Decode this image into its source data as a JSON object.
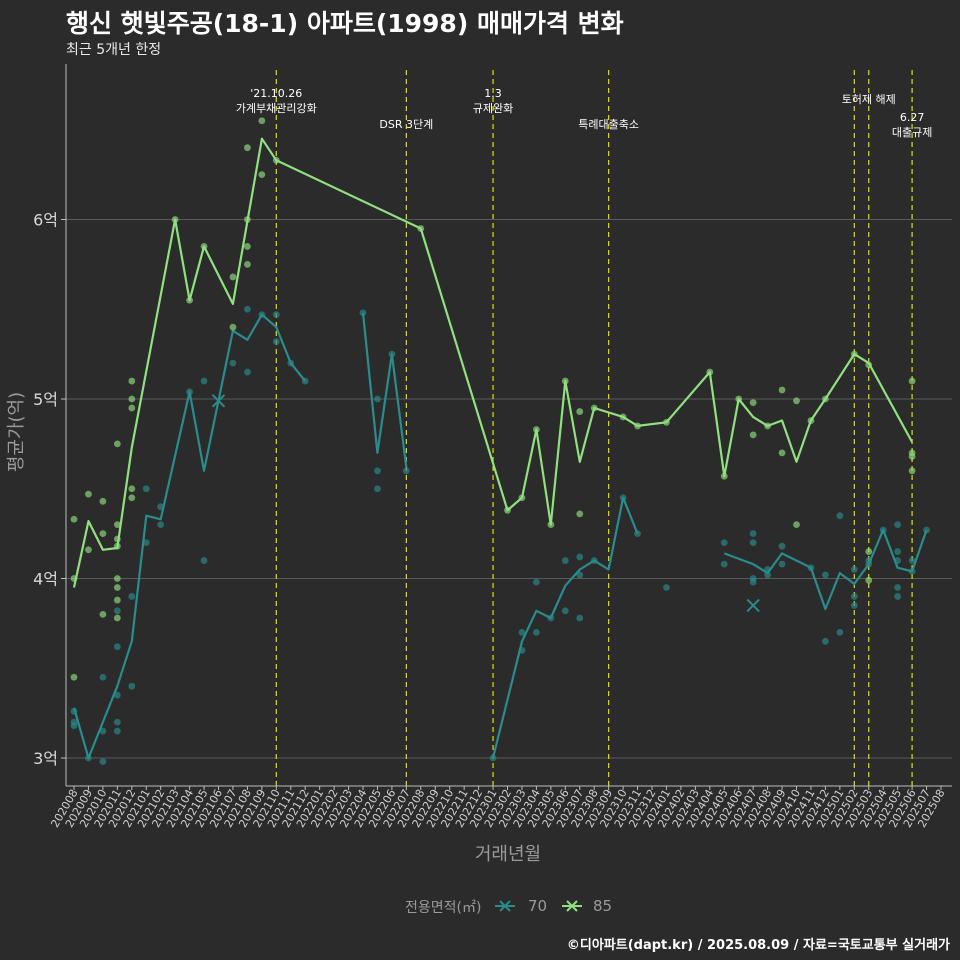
{
  "header": {
    "title": "행신 햇빛주공(18-1) 아파트(1998) 매매가격 변화",
    "subtitle": "최근 5개년 한정"
  },
  "caption": "©디아파트(dapt.kr) / 2025.08.09 / 자료=국토교통부 실거래가",
  "legend": {
    "title": "전용면적(㎡)",
    "items": [
      {
        "label": "70",
        "color": "#2a8c8c"
      },
      {
        "label": "85",
        "color": "#90e080"
      }
    ]
  },
  "chart_data": {
    "type": "line",
    "xlabel": "거래년월",
    "ylabel": "평균가(억)",
    "ylim": [
      2.85,
      6.95
    ],
    "yticks": [
      3,
      4,
      5,
      6
    ],
    "ytick_labels": [
      "3억",
      "4억",
      "5억",
      "6억"
    ],
    "categories": [
      "202008",
      "202009",
      "202010",
      "202011",
      "202012",
      "202101",
      "202102",
      "202103",
      "202104",
      "202105",
      "202106",
      "202107",
      "202108",
      "202109",
      "202110",
      "202111",
      "202112",
      "202201",
      "202202",
      "202203",
      "202204",
      "202205",
      "202206",
      "202207",
      "202208",
      "202209",
      "202210",
      "202211",
      "202212",
      "202301",
      "202302",
      "202303",
      "202304",
      "202305",
      "202306",
      "202307",
      "202308",
      "202309",
      "202310",
      "202311",
      "202312",
      "202401",
      "202402",
      "202403",
      "202404",
      "202405",
      "202406",
      "202407",
      "202408",
      "202409",
      "202410",
      "202411",
      "202412",
      "202501",
      "202502",
      "202503",
      "202504",
      "202505",
      "202506",
      "202507",
      "202508"
    ],
    "grid": true,
    "legend_position": "bottom",
    "annotations": [
      {
        "x": "202110",
        "text": [
          "'21.10.26",
          "가계부채관리강화"
        ],
        "color": "#e0e000"
      },
      {
        "x": "202207",
        "text": [
          "DSR 3단계"
        ],
        "color": "#e0e000"
      },
      {
        "x": "202301",
        "text": [
          "1.3",
          "규제완화"
        ],
        "color": "#e0e000"
      },
      {
        "x": "202309",
        "text": [
          "특례대출축소"
        ],
        "color": "#e0e000"
      },
      {
        "x": "202502",
        "text": [],
        "color": "#e0e000"
      },
      {
        "x": "202503",
        "text": [
          "토허제 해제"
        ],
        "color": "#e0e000"
      },
      {
        "x": "202506",
        "text": [
          "6.27",
          "대출규제"
        ],
        "color": "#e0e000"
      }
    ],
    "series": [
      {
        "name": "70",
        "color": "#2a8c8c",
        "line": [
          [
            [
              "202008",
              3.28
            ],
            [
              "202009",
              3.0
            ],
            [
              "202010",
              3.2
            ],
            [
              "202011",
              3.4
            ],
            [
              "202012",
              3.65
            ],
            [
              "202101",
              4.35
            ],
            [
              "202102",
              4.33
            ],
            [
              "202104",
              5.04
            ],
            [
              "202105",
              4.6
            ],
            [
              "202107",
              5.38
            ],
            [
              "202108",
              5.33
            ],
            [
              "202109",
              5.47
            ],
            [
              "202110",
              5.4
            ],
            [
              "202111",
              5.2
            ],
            [
              "202112",
              5.1
            ]
          ],
          [
            [
              "202204",
              5.48
            ],
            [
              "202205",
              4.7
            ],
            [
              "202206",
              5.25
            ],
            [
              "202207",
              4.62
            ]
          ],
          [
            [
              "202301",
              3.0
            ],
            [
              "202303",
              3.65
            ],
            [
              "202304",
              3.82
            ],
            [
              "202305",
              3.78
            ],
            [
              "202306",
              3.96
            ],
            [
              "202307",
              4.05
            ],
            [
              "202308",
              4.1
            ],
            [
              "202309",
              4.05
            ],
            [
              "202310",
              4.45
            ],
            [
              "202311",
              4.25
            ]
          ],
          [
            [
              "202405",
              4.14
            ],
            [
              "202407",
              4.08
            ],
            [
              "202408",
              4.03
            ],
            [
              "202409",
              4.14
            ],
            [
              "202411",
              4.06
            ],
            [
              "202412",
              3.83
            ],
            [
              "202501",
              4.03
            ],
            [
              "202502",
              3.97
            ],
            [
              "202503",
              4.08
            ],
            [
              "202504",
              4.27
            ],
            [
              "202505",
              4.06
            ],
            [
              "202506",
              4.04
            ],
            [
              "202507",
              4.27
            ]
          ]
        ],
        "points": [
          [
            "202008",
            3.18
          ],
          [
            "202008",
            3.2
          ],
          [
            "202008",
            3.26
          ],
          [
            "202009",
            3.0
          ],
          [
            "202010",
            2.98
          ],
          [
            "202010",
            3.15
          ],
          [
            "202010",
            3.45
          ],
          [
            "202011",
            3.15
          ],
          [
            "202011",
            3.2
          ],
          [
            "202011",
            3.35
          ],
          [
            "202011",
            3.62
          ],
          [
            "202011",
            3.82
          ],
          [
            "202012",
            3.4
          ],
          [
            "202012",
            3.9
          ],
          [
            "202101",
            4.2
          ],
          [
            "202101",
            4.5
          ],
          [
            "202102",
            4.4
          ],
          [
            "202102",
            4.3
          ],
          [
            "202104",
            5.04
          ],
          [
            "202105",
            4.1
          ],
          [
            "202105",
            5.1
          ],
          [
            "202107",
            5.2
          ],
          [
            "202108",
            5.15
          ],
          [
            "202108",
            5.5
          ],
          [
            "202109",
            5.47
          ],
          [
            "202110",
            5.47
          ],
          [
            "202110",
            5.32
          ],
          [
            "202111",
            5.2
          ],
          [
            "202112",
            5.1
          ],
          [
            "202204",
            5.48
          ],
          [
            "202205",
            4.5
          ],
          [
            "202205",
            4.6
          ],
          [
            "202205",
            5.0
          ],
          [
            "202206",
            5.25
          ],
          [
            "202207",
            4.6
          ],
          [
            "202301",
            3.0
          ],
          [
            "202303",
            3.6
          ],
          [
            "202303",
            3.7
          ],
          [
            "202304",
            3.7
          ],
          [
            "202304",
            3.98
          ],
          [
            "202305",
            3.78
          ],
          [
            "202306",
            3.82
          ],
          [
            "202306",
            4.1
          ],
          [
            "202307",
            3.78
          ],
          [
            "202307",
            4.02
          ],
          [
            "202307",
            4.12
          ],
          [
            "202308",
            4.1
          ],
          [
            "202310",
            4.45
          ],
          [
            "202311",
            4.25
          ],
          [
            "202401",
            3.95
          ],
          [
            "202405",
            4.08
          ],
          [
            "202405",
            4.2
          ],
          [
            "202407",
            3.98
          ],
          [
            "202407",
            4.0
          ],
          [
            "202407",
            4.2
          ],
          [
            "202407",
            4.25
          ],
          [
            "202408",
            4.02
          ],
          [
            "202408",
            4.05
          ],
          [
            "202409",
            4.08
          ],
          [
            "202409",
            4.18
          ],
          [
            "202411",
            4.06
          ],
          [
            "202412",
            3.65
          ],
          [
            "202412",
            4.02
          ],
          [
            "202501",
            3.7
          ],
          [
            "202501",
            4.35
          ],
          [
            "202502",
            3.85
          ],
          [
            "202502",
            3.9
          ],
          [
            "202502",
            4.05
          ],
          [
            "202503",
            4.08
          ],
          [
            "202503",
            4.1
          ],
          [
            "202504",
            4.27
          ],
          [
            "202505",
            3.9
          ],
          [
            "202505",
            3.95
          ],
          [
            "202505",
            4.1
          ],
          [
            "202505",
            4.15
          ],
          [
            "202505",
            4.3
          ],
          [
            "202506",
            4.04
          ],
          [
            "202506",
            4.1
          ],
          [
            "202507",
            4.27
          ]
        ],
        "markers_x": [
          [
            "202106",
            4.99
          ],
          [
            "202407",
            3.85
          ]
        ]
      },
      {
        "name": "85",
        "color": "#90e080",
        "line": [
          [
            [
              "202008",
              3.95
            ],
            [
              "202009",
              4.32
            ],
            [
              "202010",
              4.16
            ],
            [
              "202011",
              4.17
            ],
            [
              "202012",
              4.73
            ],
            [
              "202103",
              6.0
            ],
            [
              "202104",
              5.55
            ],
            [
              "202105",
              5.85
            ],
            [
              "202107",
              5.53
            ],
            [
              "202109",
              6.45
            ],
            [
              "202110",
              6.33
            ],
            [
              "202208",
              5.95
            ],
            [
              "202302",
              4.38
            ],
            [
              "202303",
              4.45
            ],
            [
              "202304",
              4.83
            ],
            [
              "202305",
              4.3
            ],
            [
              "202306",
              5.1
            ],
            [
              "202307",
              4.65
            ],
            [
              "202308",
              4.95
            ],
            [
              "202310",
              4.9
            ],
            [
              "202311",
              4.85
            ],
            [
              "202401",
              4.87
            ],
            [
              "202404",
              5.15
            ],
            [
              "202405",
              4.57
            ],
            [
              "202406",
              5.0
            ],
            [
              "202407",
              4.9
            ],
            [
              "202408",
              4.85
            ],
            [
              "202409",
              4.88
            ],
            [
              "202410",
              4.65
            ],
            [
              "202411",
              4.88
            ],
            [
              "202412",
              5.0
            ],
            [
              "202502",
              5.25
            ],
            [
              "202503",
              5.2
            ],
            [
              "202506",
              4.76
            ]
          ]
        ],
        "points": [
          [
            "202008",
            4.33
          ],
          [
            "202008",
            3.45
          ],
          [
            "202008",
            4.0
          ],
          [
            "202009",
            4.47
          ],
          [
            "202009",
            4.16
          ],
          [
            "202010",
            4.25
          ],
          [
            "202010",
            4.43
          ],
          [
            "202010",
            3.8
          ],
          [
            "202011",
            4.75
          ],
          [
            "202011",
            4.3
          ],
          [
            "202011",
            4.22
          ],
          [
            "202011",
            4.18
          ],
          [
            "202011",
            4.0
          ],
          [
            "202011",
            3.95
          ],
          [
            "202011",
            3.88
          ],
          [
            "202011",
            3.78
          ],
          [
            "202012",
            5.1
          ],
          [
            "202012",
            5.0
          ],
          [
            "202012",
            4.95
          ],
          [
            "202012",
            4.5
          ],
          [
            "202012",
            4.45
          ],
          [
            "202103",
            6.0
          ],
          [
            "202104",
            5.55
          ],
          [
            "202105",
            5.85
          ],
          [
            "202107",
            5.68
          ],
          [
            "202107",
            5.4
          ],
          [
            "202108",
            6.4
          ],
          [
            "202108",
            6.0
          ],
          [
            "202108",
            5.85
          ],
          [
            "202108",
            5.75
          ],
          [
            "202109",
            6.55
          ],
          [
            "202109",
            6.25
          ],
          [
            "202110",
            6.33
          ],
          [
            "202208",
            5.95
          ],
          [
            "202302",
            4.38
          ],
          [
            "202303",
            4.45
          ],
          [
            "202304",
            4.83
          ],
          [
            "202305",
            4.3
          ],
          [
            "202306",
            5.1
          ],
          [
            "202307",
            4.93
          ],
          [
            "202307",
            4.36
          ],
          [
            "202308",
            4.95
          ],
          [
            "202310",
            4.9
          ],
          [
            "202311",
            4.85
          ],
          [
            "202401",
            4.87
          ],
          [
            "202404",
            5.15
          ],
          [
            "202405",
            4.57
          ],
          [
            "202406",
            5.0
          ],
          [
            "202407",
            4.98
          ],
          [
            "202407",
            4.8
          ],
          [
            "202408",
            4.85
          ],
          [
            "202409",
            5.05
          ],
          [
            "202409",
            4.7
          ],
          [
            "202410",
            4.99
          ],
          [
            "202410",
            4.3
          ],
          [
            "202411",
            4.88
          ],
          [
            "202412",
            5.0
          ],
          [
            "202502",
            5.25
          ],
          [
            "202503",
            5.19
          ],
          [
            "202503",
            4.15
          ],
          [
            "202503",
            3.99
          ],
          [
            "202506",
            5.1
          ],
          [
            "202506",
            4.7
          ],
          [
            "202506",
            4.68
          ],
          [
            "202506",
            4.6
          ]
        ],
        "markers_x": []
      }
    ]
  }
}
